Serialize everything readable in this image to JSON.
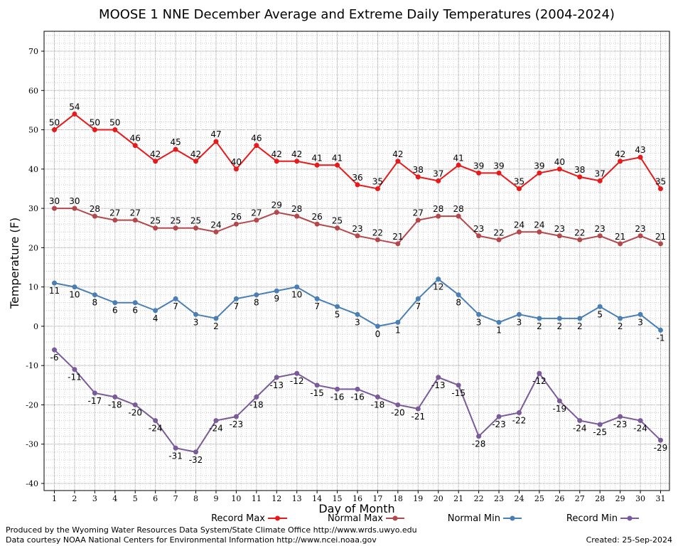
{
  "chart_data": {
    "type": "line",
    "title": "MOOSE 1 NNE December Average and Extreme Daily Temperatures (2004-2024)",
    "xlabel": "Day of Month",
    "ylabel": "Temperature (F)",
    "xlim": [
      1,
      31
    ],
    "ylim": [
      -40,
      70
    ],
    "yticks": [
      -40,
      -30,
      -20,
      -10,
      0,
      10,
      20,
      30,
      40,
      50,
      60,
      70
    ],
    "grid": true,
    "x": [
      1,
      2,
      3,
      4,
      5,
      6,
      7,
      8,
      9,
      10,
      11,
      12,
      13,
      14,
      15,
      16,
      17,
      18,
      19,
      20,
      21,
      22,
      23,
      24,
      25,
      26,
      27,
      28,
      29,
      30,
      31
    ],
    "series": [
      {
        "name": "Record Max",
        "color": "#e8191a",
        "values": [
          50,
          54,
          50,
          50,
          46,
          42,
          45,
          42,
          47,
          40,
          46,
          42,
          42,
          41,
          41,
          36,
          35,
          42,
          38,
          37,
          41,
          39,
          39,
          35,
          39,
          40,
          38,
          37,
          42,
          43,
          35
        ]
      },
      {
        "name": "Normal Max",
        "color": "#b5474a",
        "values": [
          30,
          30,
          28,
          27,
          27,
          25,
          25,
          25,
          24,
          26,
          27,
          29,
          28,
          26,
          25,
          23,
          22,
          21,
          27,
          28,
          28,
          23,
          22,
          24,
          24,
          23,
          22,
          23,
          21,
          23,
          21
        ]
      },
      {
        "name": "Normal Min",
        "color": "#4a7fb5",
        "values": [
          11,
          10,
          8,
          6,
          6,
          4,
          7,
          3,
          2,
          7,
          8,
          9,
          10,
          7,
          5,
          3,
          0,
          1,
          7,
          12,
          8,
          3,
          1,
          3,
          2,
          2,
          2,
          5,
          2,
          3,
          -1
        ]
      },
      {
        "name": "Record Min",
        "color": "#7a5a9a",
        "values": [
          -6,
          -11,
          -17,
          -18,
          -20,
          -24,
          -31,
          -32,
          -24,
          -23,
          -18,
          -13,
          -12,
          -15,
          -16,
          -16,
          -18,
          -20,
          -21,
          -13,
          -15,
          -28,
          -23,
          -22,
          -12,
          -19,
          -24,
          -25,
          -23,
          -24,
          -29
        ]
      }
    ],
    "legend_placement": "bottom"
  },
  "footer": {
    "line1": "Produced by the Wyoming Water Resources Data System/State Climate Office http://www.wrds.uwyo.edu",
    "line2": "Data courtesy NOAA National Centers for Environmental Information http://www.ncei.noaa.gov",
    "created": "Created:  25-Sep-2024"
  }
}
